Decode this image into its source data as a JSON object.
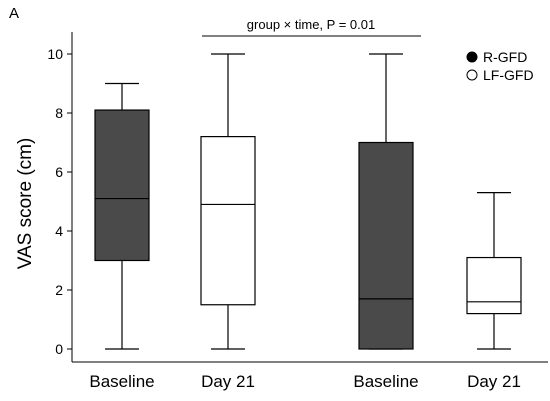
{
  "chart_data": {
    "type": "box",
    "panel_label": "A",
    "ylabel": "VAS score (cm)",
    "ylim": [
      0,
      10
    ],
    "yticks": [
      "0",
      "2",
      "4",
      "6",
      "8",
      "10"
    ],
    "categories": [
      "Baseline",
      "Day 21",
      "Baseline",
      "Day 21"
    ],
    "annotation": "group × time, P = 0.01",
    "series": [
      {
        "name": "R-GFD",
        "color": "#4a4a4a"
      },
      {
        "name": "LF-GFD",
        "color": "#ffffff"
      }
    ],
    "boxes": [
      {
        "category": "Baseline",
        "series": "R-GFD",
        "min": 0,
        "q1": 3.0,
        "median": 5.1,
        "q3": 8.1,
        "max": 9.0
      },
      {
        "category": "Day 21",
        "series": "LF-GFD",
        "min": 0,
        "q1": 1.5,
        "median": 4.9,
        "q3": 7.2,
        "max": 10.0
      },
      {
        "category": "Baseline",
        "series": "R-GFD",
        "min": 0,
        "q1": 0,
        "median": 1.7,
        "q3": 7.0,
        "max": 10.0
      },
      {
        "category": "Day 21",
        "series": "LF-GFD",
        "min": 0,
        "q1": 1.2,
        "median": 1.6,
        "q3": 3.1,
        "max": 5.3
      }
    ],
    "grid": false,
    "legend_position": "top-right"
  }
}
